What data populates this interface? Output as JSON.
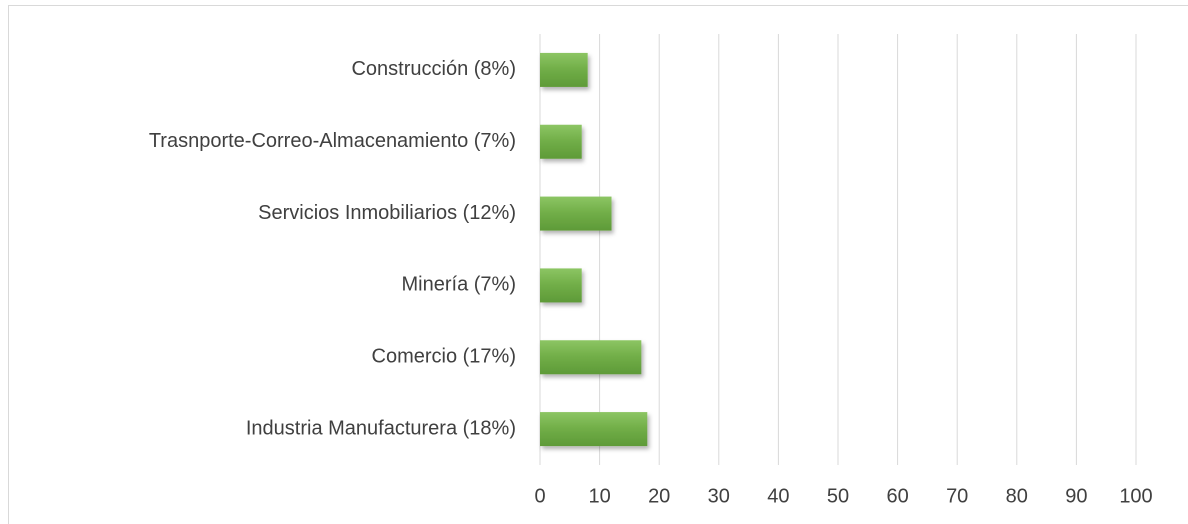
{
  "chart_data": {
    "type": "bar",
    "orientation": "horizontal",
    "categories": [
      "Construcción (8%)",
      "Trasnporte-Correo-Almacenamiento (7%)",
      "Servicios Inmobiliarios (12%)",
      "Minería (7%)",
      "Comercio (17%)",
      "Industria Manufacturera (18%)"
    ],
    "values": [
      8,
      7,
      12,
      7,
      17,
      18
    ],
    "color": "#70ad47",
    "xlim": [
      0,
      100
    ],
    "xticks": [
      0,
      10,
      20,
      30,
      40,
      50,
      60,
      70,
      80,
      90,
      100
    ],
    "grid": true
  }
}
